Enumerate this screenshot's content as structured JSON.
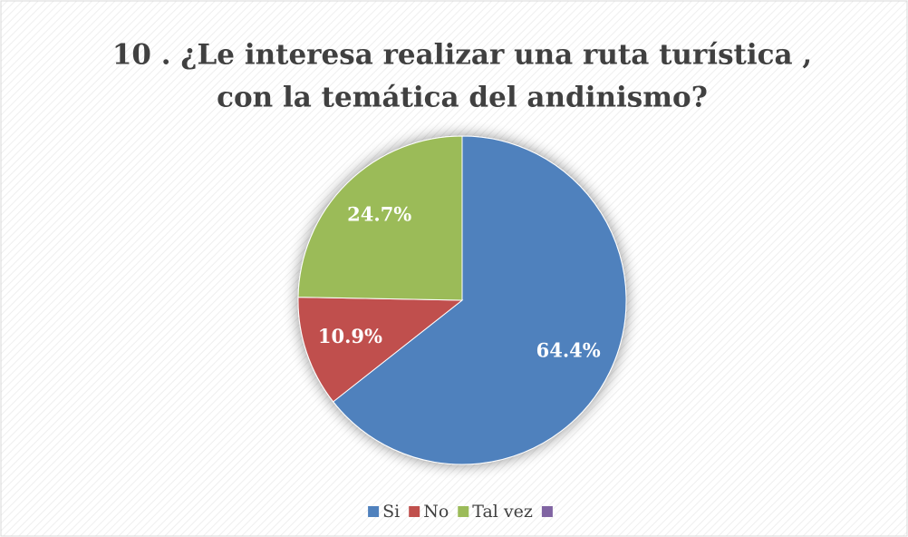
{
  "chart_data": {
    "type": "pie",
    "title": [
      "10 . ¿Le interesa realizar una ruta turística ,",
      "con la temática del andinismo?"
    ],
    "categories": [
      "Si",
      "No",
      "Tal vez",
      null
    ],
    "values": [
      64.4,
      10.9,
      24.7,
      null
    ],
    "value_labels": [
      "64.4%",
      "10.9%",
      "24.7%",
      null
    ],
    "colors": [
      "#4f81bd",
      "#c0504d",
      "#9bbb59",
      "#8064a2"
    ],
    "legend": "bottom"
  }
}
